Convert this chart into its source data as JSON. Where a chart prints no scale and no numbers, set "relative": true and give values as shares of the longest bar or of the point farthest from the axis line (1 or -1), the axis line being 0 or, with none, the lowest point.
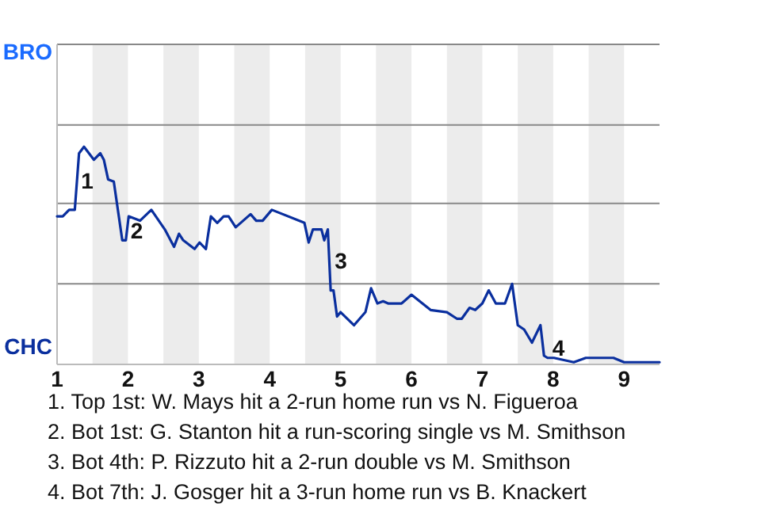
{
  "chart_data": {
    "type": "line",
    "relative": true,
    "xlim": [
      1,
      9.5
    ],
    "xticks": [
      1,
      2,
      3,
      4,
      5,
      6,
      7,
      8,
      9
    ],
    "x": [
      1,
      1.08,
      1.17,
      1.25,
      1.31,
      1.38,
      1.52,
      1.61,
      1.66,
      1.72,
      1.8,
      1.92,
      1.97,
      2.01,
      2.17,
      2.33,
      2.52,
      2.65,
      2.72,
      2.78,
      2.94,
      3.01,
      3.1,
      3.17,
      3.26,
      3.35,
      3.42,
      3.52,
      3.73,
      3.81,
      3.9,
      4.03,
      4.49,
      4.55,
      4.61,
      4.73,
      4.77,
      4.82,
      4.86,
      4.9,
      4.95,
      5,
      5.19,
      5.35,
      5.43,
      5.52,
      5.6,
      5.67,
      5.86,
      6,
      6.27,
      6.5,
      6.64,
      6.71,
      6.82,
      6.9,
      7,
      7.09,
      7.19,
      7.32,
      7.42,
      7.5,
      7.59,
      7.7,
      7.82,
      7.87,
      7.92,
      8.01,
      8.29,
      8.46,
      8.56,
      8.85,
      9,
      9.21,
      9.5
    ],
    "marker": "none",
    "line_style": "solid",
    "ref_lines": [
      {
        "axis": "y",
        "value": 0.37,
        "color": "#888888"
      },
      {
        "axis": "y",
        "value": 0.74,
        "color": "#888888"
      },
      {
        "axis": "y",
        "value": 1.1,
        "color": "#888888"
      },
      {
        "axis": "y",
        "value": 1.47,
        "color": "#888888"
      }
    ],
    "bands": [
      {
        "axis": "x",
        "from": 1.5,
        "to": 2,
        "color": "#ececec"
      },
      {
        "axis": "x",
        "from": 2.5,
        "to": 3,
        "color": "#ececec"
      },
      {
        "axis": "x",
        "from": 3.5,
        "to": 4,
        "color": "#ececec"
      },
      {
        "axis": "x",
        "from": 4.5,
        "to": 5,
        "color": "#ececec"
      },
      {
        "axis": "x",
        "from": 5.5,
        "to": 6,
        "color": "#ececec"
      },
      {
        "axis": "x",
        "from": 6.5,
        "to": 7,
        "color": "#ececec"
      },
      {
        "axis": "x",
        "from": 7.5,
        "to": 8,
        "color": "#ececec"
      },
      {
        "axis": "x",
        "from": 8.5,
        "to": 9,
        "color": "#ececec"
      }
    ],
    "series": [
      {
        "color": "#0a2f9e",
        "values": [
          0.68,
          0.68,
          0.71,
          0.71,
          0.97,
          1,
          0.94,
          0.97,
          0.94,
          0.85,
          0.84,
          0.57,
          0.57,
          0.68,
          0.66,
          0.71,
          0.62,
          0.54,
          0.6,
          0.57,
          0.53,
          0.56,
          0.53,
          0.68,
          0.65,
          0.68,
          0.68,
          0.63,
          0.69,
          0.66,
          0.66,
          0.71,
          0.65,
          0.56,
          0.62,
          0.62,
          0.57,
          0.62,
          0.34,
          0.34,
          0.22,
          0.24,
          0.18,
          0.24,
          0.35,
          0.28,
          0.29,
          0.28,
          0.28,
          0.32,
          0.25,
          0.24,
          0.21,
          0.21,
          0.26,
          0.25,
          0.28,
          0.34,
          0.28,
          0.28,
          0.37,
          0.18,
          0.16,
          0.1,
          0.18,
          0.04,
          0.03,
          0.03,
          0.01,
          0.03,
          0.03,
          0.03,
          0.01,
          0.01,
          0.01
        ]
      }
    ],
    "annotations": [
      "BRO",
      "CHC",
      {
        "text": "1",
        "x": 1.27,
        "y": 0.8
      },
      {
        "text": "2",
        "x": 1.97,
        "y": 0.57
      },
      {
        "text": "3",
        "x": 4.85,
        "y": 0.43
      },
      {
        "text": "4",
        "x": 7.92,
        "y": 0.03
      },
      "1. Top 1st: W. Mays hit a 2-run home run vs N. Figueroa",
      "2. Bot 1st: G. Stanton hit a run-scoring single vs M. Smithson",
      "3. Bot 4th: P. Rizzuto hit a 2-run double vs M. Smithson",
      "4. Bot 7th: J. Gosger hit a 3-run home run vs B. Knackert"
    ]
  }
}
